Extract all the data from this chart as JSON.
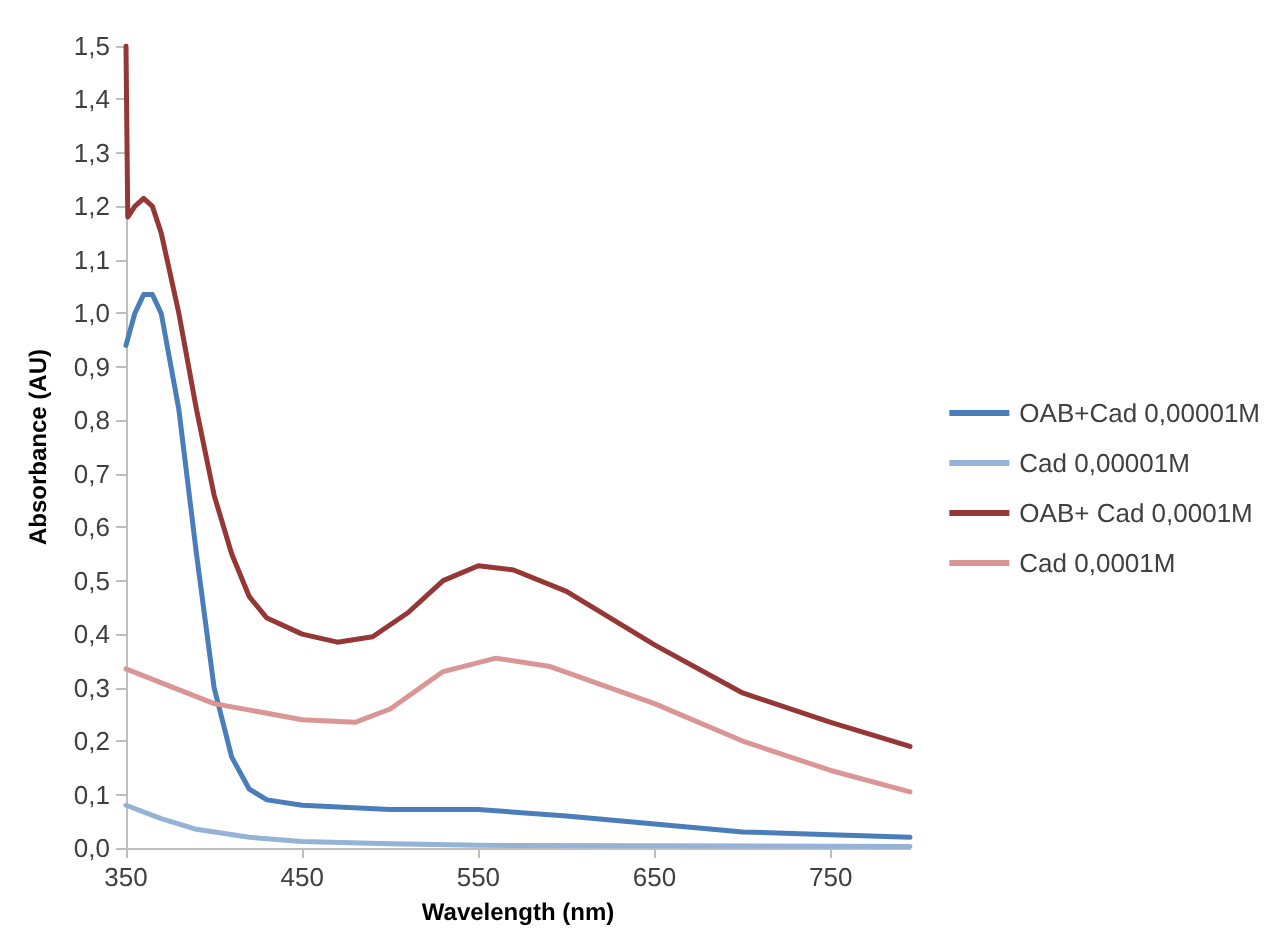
{
  "chart_data": {
    "type": "line",
    "xlabel": "Wavelength (nm)",
    "ylabel": "Absorbance (AU)",
    "xlim": [
      350,
      795
    ],
    "xticks": [
      350,
      450,
      550,
      650,
      750
    ],
    "ylim": [
      0,
      1.5
    ],
    "yticks": [
      {
        "value": 0,
        "label": "0,0"
      },
      {
        "value": 0.1,
        "label": "0,1"
      },
      {
        "value": 0.2,
        "label": "0,2"
      },
      {
        "value": 0.3,
        "label": "0,3"
      },
      {
        "value": 0.4,
        "label": "0,4"
      },
      {
        "value": 0.5,
        "label": "0,5"
      },
      {
        "value": 0.6,
        "label": "0,6"
      },
      {
        "value": 0.7,
        "label": "0,7"
      },
      {
        "value": 0.8,
        "label": "0,8"
      },
      {
        "value": 0.9,
        "label": "0,9"
      },
      {
        "value": 1.0,
        "label": "1,0"
      },
      {
        "value": 1.1,
        "label": "1,1"
      },
      {
        "value": 1.2,
        "label": "1,2"
      },
      {
        "value": 1.3,
        "label": "1,3"
      },
      {
        "value": 1.4,
        "label": "1,4"
      },
      {
        "value": 1.5,
        "label": "1,5"
      }
    ],
    "grid": false,
    "legend": "right",
    "marker": "none",
    "line_style": "solid",
    "series": [
      {
        "name": "OAB+Cad 0,00001M",
        "color": "#4a7ebb",
        "x": [
          350,
          355,
          360,
          365,
          370,
          380,
          390,
          400,
          410,
          420,
          430,
          450,
          500,
          550,
          600,
          650,
          700,
          750,
          795
        ],
        "values": [
          0.94,
          1.0,
          1.035,
          1.035,
          1.0,
          0.82,
          0.55,
          0.3,
          0.17,
          0.11,
          0.09,
          0.08,
          0.072,
          0.072,
          0.06,
          0.045,
          0.03,
          0.025,
          0.02
        ]
      },
      {
        "name": "Cad 0,00001M",
        "color": "#95b3d7",
        "x": [
          350,
          370,
          390,
          420,
          450,
          500,
          550,
          650,
          795
        ],
        "values": [
          0.08,
          0.055,
          0.035,
          0.02,
          0.012,
          0.008,
          0.005,
          0.004,
          0.003
        ]
      },
      {
        "name": "OAB+ Cad 0,0001M",
        "color": "#953735",
        "x": [
          350,
          351,
          355,
          360,
          365,
          370,
          380,
          390,
          400,
          410,
          420,
          430,
          450,
          470,
          490,
          510,
          530,
          550,
          570,
          600,
          650,
          700,
          750,
          795
        ],
        "values": [
          1.5,
          1.18,
          1.2,
          1.215,
          1.2,
          1.15,
          1.0,
          0.82,
          0.66,
          0.55,
          0.47,
          0.43,
          0.4,
          0.385,
          0.395,
          0.44,
          0.5,
          0.528,
          0.52,
          0.48,
          0.38,
          0.29,
          0.235,
          0.19
        ]
      },
      {
        "name": "Cad 0,0001M",
        "color": "#d99694",
        "x": [
          350,
          400,
          450,
          480,
          500,
          530,
          560,
          590,
          650,
          700,
          750,
          795
        ],
        "values": [
          0.335,
          0.27,
          0.24,
          0.235,
          0.26,
          0.33,
          0.355,
          0.34,
          0.27,
          0.2,
          0.145,
          0.105
        ]
      }
    ]
  }
}
